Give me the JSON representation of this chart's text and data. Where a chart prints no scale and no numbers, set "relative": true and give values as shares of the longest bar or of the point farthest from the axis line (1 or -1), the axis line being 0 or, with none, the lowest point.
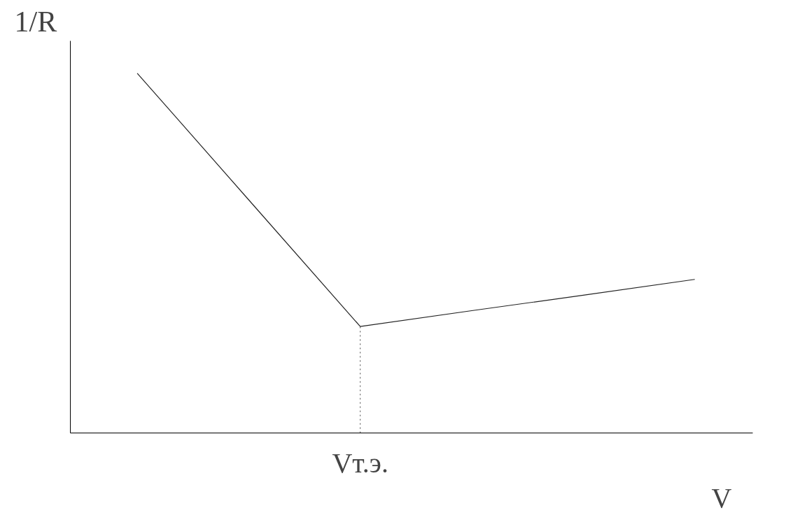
{
  "chart_data": {
    "type": "line",
    "relative": true,
    "xlabel": "V",
    "ylabel": "1/R",
    "categories": [
      null,
      null,
      null,
      null,
      null,
      null
    ],
    "annotations": [
      "Vт.э."
    ],
    "line_style": "solid",
    "series": [
      {
        "color": "#222222",
        "values": [
          1,
          0.648,
          0.296,
          0.34,
          0.383,
          0.427
        ]
      }
    ]
  }
}
